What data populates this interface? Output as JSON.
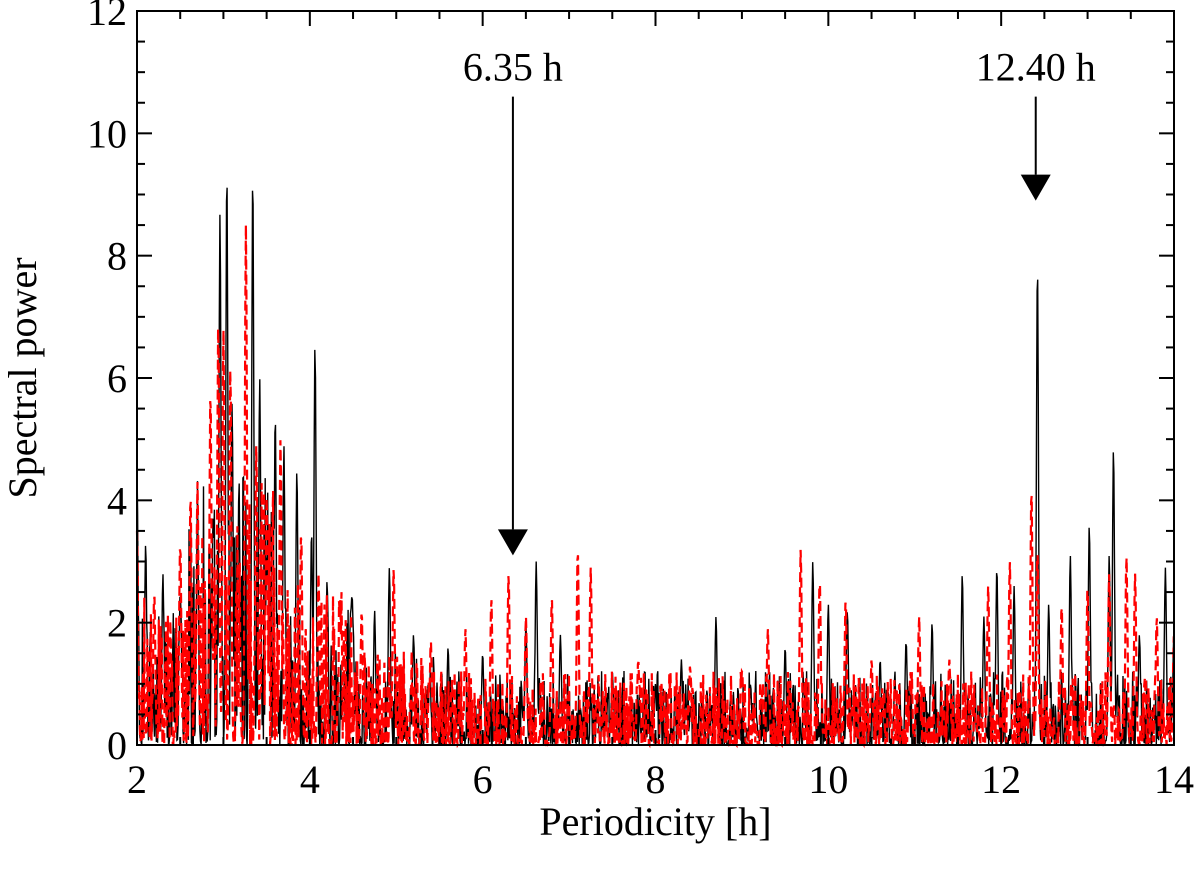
{
  "chart_data": {
    "type": "line",
    "title": "",
    "xlabel": "Periodicity [h]",
    "ylabel": "Spectral power",
    "xlim": [
      2,
      14
    ],
    "ylim": [
      0,
      12
    ],
    "x_ticks": [
      "2",
      "4",
      "6",
      "8",
      "10",
      "12",
      "14"
    ],
    "y_ticks": [
      "0",
      "2",
      "4",
      "6",
      "8",
      "10",
      "12"
    ],
    "grid": false,
    "legend": "none",
    "colors": {
      "series_solid": "#000000",
      "series_dashed": "#ff0000",
      "axes": "#000000"
    },
    "series": [
      {
        "style": "solid",
        "color": "#000000",
        "peaks": [
          [
            2.0,
            4.5
          ],
          [
            2.1,
            3.3
          ],
          [
            2.3,
            2.8
          ],
          [
            2.5,
            2.5
          ],
          [
            2.7,
            3.5
          ],
          [
            2.96,
            8.7
          ],
          [
            3.04,
            9.4
          ],
          [
            3.1,
            5.6
          ],
          [
            3.18,
            4.2
          ],
          [
            3.34,
            9.35
          ],
          [
            3.42,
            6.0
          ],
          [
            3.5,
            3.0
          ],
          [
            3.6,
            5.4
          ],
          [
            3.7,
            4.9
          ],
          [
            3.85,
            4.5
          ],
          [
            4.02,
            3.5
          ],
          [
            4.06,
            6.55
          ],
          [
            4.2,
            2.7
          ],
          [
            4.5,
            2.0
          ],
          [
            4.75,
            2.2
          ],
          [
            4.92,
            2.9
          ],
          [
            5.2,
            1.8
          ],
          [
            5.6,
            1.6
          ],
          [
            6.0,
            1.5
          ],
          [
            6.5,
            2.0
          ],
          [
            6.62,
            3.0
          ],
          [
            6.9,
            1.8
          ],
          [
            7.5,
            1.2
          ],
          [
            8.0,
            1.0
          ],
          [
            8.3,
            1.4
          ],
          [
            8.7,
            2.1
          ],
          [
            9.1,
            1.0
          ],
          [
            9.5,
            1.6
          ],
          [
            9.82,
            3.0
          ],
          [
            10.0,
            2.3
          ],
          [
            10.22,
            2.2
          ],
          [
            10.6,
            1.4
          ],
          [
            10.9,
            1.7
          ],
          [
            11.2,
            2.0
          ],
          [
            11.55,
            2.8
          ],
          [
            11.8,
            2.1
          ],
          [
            11.95,
            2.9
          ],
          [
            12.15,
            2.6
          ],
          [
            12.42,
            7.85
          ],
          [
            12.55,
            2.3
          ],
          [
            12.8,
            3.1
          ],
          [
            13.02,
            3.6
          ],
          [
            13.25,
            3.1
          ],
          [
            13.3,
            4.85
          ],
          [
            13.6,
            1.8
          ],
          [
            13.9,
            2.9
          ],
          [
            14.0,
            1.9
          ]
        ]
      },
      {
        "style": "dashed",
        "color": "#ff0000",
        "peaks": [
          [
            2.0,
            3.5
          ],
          [
            2.2,
            2.5
          ],
          [
            2.5,
            3.3
          ],
          [
            2.62,
            4.1
          ],
          [
            2.7,
            4.3
          ],
          [
            2.85,
            5.8
          ],
          [
            2.94,
            6.9
          ],
          [
            3.0,
            6.8
          ],
          [
            3.08,
            6.2
          ],
          [
            3.26,
            8.5
          ],
          [
            3.38,
            4.9
          ],
          [
            3.5,
            4.1
          ],
          [
            3.66,
            5.0
          ],
          [
            3.9,
            3.5
          ],
          [
            4.1,
            2.8
          ],
          [
            4.35,
            2.4
          ],
          [
            4.6,
            2.2
          ],
          [
            4.97,
            2.9
          ],
          [
            5.4,
            1.7
          ],
          [
            5.8,
            1.9
          ],
          [
            6.1,
            2.4
          ],
          [
            6.3,
            2.8
          ],
          [
            6.5,
            2.1
          ],
          [
            6.8,
            2.4
          ],
          [
            7.1,
            3.2
          ],
          [
            7.25,
            2.9
          ],
          [
            7.8,
            1.4
          ],
          [
            8.4,
            1.3
          ],
          [
            9.0,
            1.2
          ],
          [
            9.3,
            1.9
          ],
          [
            9.68,
            3.2
          ],
          [
            9.9,
            2.7
          ],
          [
            10.2,
            2.4
          ],
          [
            10.5,
            1.4
          ],
          [
            11.05,
            2.1
          ],
          [
            11.4,
            1.4
          ],
          [
            11.85,
            2.6
          ],
          [
            12.1,
            3.0
          ],
          [
            12.35,
            4.2
          ],
          [
            12.42,
            3.2
          ],
          [
            12.7,
            2.3
          ],
          [
            13.0,
            2.6
          ],
          [
            13.25,
            2.8
          ],
          [
            13.45,
            3.1
          ],
          [
            13.55,
            2.8
          ],
          [
            13.8,
            2.1
          ],
          [
            14.0,
            1.8
          ]
        ]
      }
    ],
    "annotations": [
      {
        "label": "6.35 h",
        "x": 6.35,
        "arrow_tip_y": 3.1,
        "arrow_top_y": 10.6
      },
      {
        "label": "12.40 h",
        "x": 12.4,
        "arrow_tip_y": 8.9,
        "arrow_top_y": 10.6
      }
    ]
  }
}
